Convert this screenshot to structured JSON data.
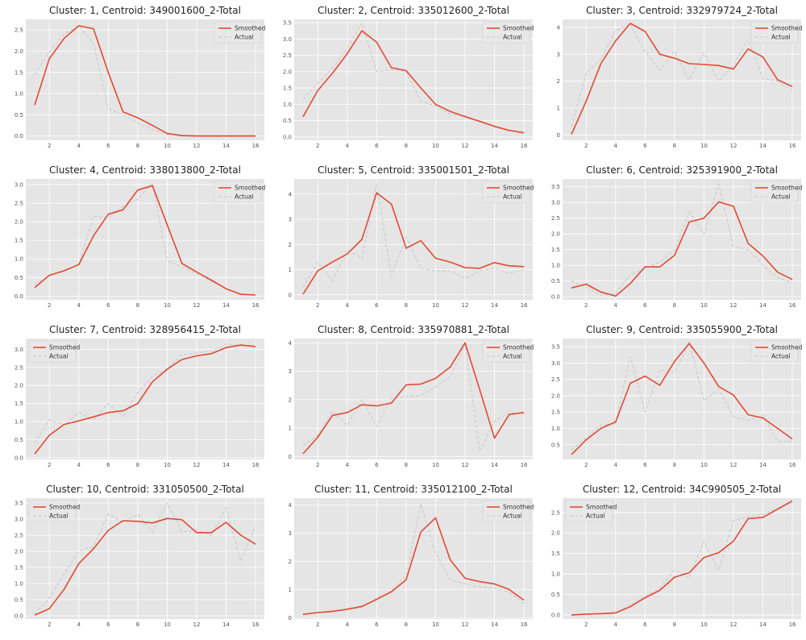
{
  "colors": {
    "smoothed": "#e24a33",
    "actual": "#c8c8c8",
    "plot_bg": "#e5e5e5",
    "grid": "#ffffff"
  },
  "chart_data": [
    {
      "type": "line",
      "title": "Cluster: 1,  Centroid: 349001600_2-Total",
      "x": [
        1,
        2,
        3,
        4,
        5,
        6,
        7,
        8,
        9,
        10,
        11,
        12,
        13,
        14,
        15,
        16
      ],
      "xticks": [
        2,
        4,
        6,
        8,
        10,
        12,
        14,
        16
      ],
      "ylim": [
        -0.1,
        2.75
      ],
      "yticks": [
        "0.0",
        "0.5",
        "1.0",
        "1.5",
        "2.0",
        "2.5"
      ],
      "legend_position": "upper right",
      "series": [
        {
          "name": "Smoothed",
          "values": [
            0.73,
            1.82,
            2.3,
            2.6,
            2.53,
            1.5,
            0.57,
            0.43,
            0.25,
            0.06,
            0.01,
            0.0,
            0.0,
            0.0,
            0.0,
            0.0
          ]
        },
        {
          "name": "Actual",
          "values": [
            1.45,
            1.98,
            2.4,
            2.6,
            2.18,
            0.65,
            0.5,
            0.3,
            0.15,
            0.04,
            0.0,
            0.0,
            0.0,
            0.0,
            0.0,
            0.0
          ]
        }
      ]
    },
    {
      "type": "line",
      "title": "Cluster: 2,  Centroid: 335012600_2-Total",
      "x": [
        1,
        2,
        3,
        4,
        5,
        6,
        7,
        8,
        9,
        10,
        11,
        12,
        13,
        14,
        15,
        16
      ],
      "xticks": [
        2,
        4,
        6,
        8,
        10,
        12,
        14,
        16
      ],
      "ylim": [
        -0.1,
        3.6
      ],
      "yticks": [
        "0.0",
        "0.5",
        "1.0",
        "1.5",
        "2.0",
        "2.5",
        "3.0",
        "3.5"
      ],
      "legend_position": "upper right",
      "series": [
        {
          "name": "Smoothed",
          "values": [
            0.62,
            1.42,
            1.95,
            2.55,
            3.25,
            2.9,
            2.12,
            2.03,
            1.5,
            1.0,
            0.78,
            0.62,
            0.48,
            0.33,
            0.2,
            0.13
          ]
        },
        {
          "name": "Actual",
          "values": [
            1.15,
            1.65,
            2.1,
            2.7,
            3.5,
            2.0,
            2.05,
            2.0,
            1.1,
            0.95,
            0.7,
            0.65,
            0.45,
            0.3,
            0.2,
            0.1
          ]
        }
      ]
    },
    {
      "type": "line",
      "title": "Cluster: 3,  Centroid: 332979724_2-Total",
      "x": [
        1,
        2,
        3,
        4,
        5,
        6,
        7,
        8,
        9,
        10,
        11,
        12,
        13,
        14,
        15,
        16
      ],
      "xticks": [
        2,
        4,
        6,
        8,
        10,
        12,
        14,
        16
      ],
      "ylim": [
        -0.2,
        4.3
      ],
      "yticks": [
        "0",
        "1",
        "2",
        "3",
        "4"
      ],
      "legend_position": "upper right",
      "series": [
        {
          "name": "Smoothed",
          "values": [
            0.02,
            1.25,
            2.65,
            3.5,
            4.15,
            3.85,
            3.0,
            2.85,
            2.65,
            2.62,
            2.58,
            2.45,
            3.2,
            2.9,
            2.05,
            1.8
          ]
        },
        {
          "name": "Actual",
          "values": [
            0.3,
            2.3,
            2.8,
            3.9,
            4.1,
            3.1,
            2.4,
            3.1,
            2.05,
            3.05,
            2.0,
            2.6,
            3.55,
            2.1,
            2.0,
            1.65
          ]
        }
      ]
    },
    {
      "type": "line",
      "title": "Cluster: 4,  Centroid: 338013800_2-Total",
      "x": [
        1,
        2,
        3,
        4,
        5,
        6,
        7,
        8,
        9,
        10,
        11,
        12,
        13,
        14,
        15,
        16
      ],
      "xticks": [
        2,
        4,
        6,
        8,
        10,
        12,
        14,
        16
      ],
      "ylim": [
        -0.1,
        3.15
      ],
      "yticks": [
        "0.0",
        "0.5",
        "1.0",
        "1.5",
        "2.0",
        "2.5",
        "3.0"
      ],
      "legend_position": "upper right",
      "series": [
        {
          "name": "Smoothed",
          "values": [
            0.23,
            0.56,
            0.68,
            0.85,
            1.62,
            2.2,
            2.32,
            2.85,
            2.97,
            1.92,
            0.88,
            0.65,
            0.43,
            0.2,
            0.05,
            0.03
          ]
        },
        {
          "name": "Actual",
          "values": [
            0.3,
            0.55,
            0.7,
            0.85,
            2.15,
            2.1,
            2.4,
            2.6,
            3.05,
            0.95,
            0.8,
            0.6,
            0.4,
            0.2,
            0.05,
            0.02
          ]
        }
      ]
    },
    {
      "type": "line",
      "title": "Cluster: 5,  Centroid: 335001501_2-Total",
      "x": [
        1,
        2,
        3,
        4,
        5,
        6,
        7,
        8,
        9,
        10,
        11,
        12,
        13,
        14,
        15,
        16
      ],
      "xticks": [
        2,
        4,
        6,
        8,
        10,
        12,
        14,
        16
      ],
      "ylim": [
        -0.2,
        4.6
      ],
      "yticks": [
        "0",
        "1",
        "2",
        "3",
        "4"
      ],
      "legend_position": "upper right",
      "series": [
        {
          "name": "Smoothed",
          "values": [
            0.02,
            0.95,
            1.3,
            1.62,
            2.2,
            4.05,
            3.6,
            1.85,
            2.15,
            1.45,
            1.3,
            1.08,
            1.05,
            1.28,
            1.15,
            1.12
          ]
        },
        {
          "name": "Actual",
          "values": [
            0.3,
            1.3,
            0.55,
            1.8,
            1.45,
            4.4,
            0.75,
            2.3,
            1.05,
            0.95,
            0.95,
            0.65,
            0.95,
            1.05,
            0.85,
            1.0
          ]
        }
      ]
    },
    {
      "type": "line",
      "title": "Cluster: 6,  Centroid: 325391900_2-Total",
      "x": [
        1,
        2,
        3,
        4,
        5,
        6,
        7,
        8,
        9,
        10,
        11,
        12,
        13,
        14,
        15,
        16
      ],
      "xticks": [
        2,
        4,
        6,
        8,
        10,
        12,
        14,
        16
      ],
      "ylim": [
        -0.1,
        3.75
      ],
      "yticks": [
        "0.0",
        "0.5",
        "1.0",
        "1.5",
        "2.0",
        "2.5",
        "3.0",
        "3.5"
      ],
      "legend_position": "upper right",
      "series": [
        {
          "name": "Smoothed",
          "values": [
            0.28,
            0.4,
            0.15,
            0.02,
            0.42,
            0.95,
            0.95,
            1.32,
            2.38,
            2.5,
            3.02,
            2.88,
            1.7,
            1.3,
            0.78,
            0.55
          ]
        },
        {
          "name": "Actual",
          "values": [
            0.5,
            0.3,
            0.05,
            0.1,
            0.7,
            0.9,
            1.1,
            1.5,
            2.7,
            2.0,
            3.6,
            1.6,
            1.5,
            1.0,
            0.6,
            0.45
          ]
        }
      ]
    },
    {
      "type": "line",
      "title": "Cluster: 7,  Centroid: 328956415_2-Total",
      "x": [
        1,
        2,
        3,
        4,
        5,
        6,
        7,
        8,
        9,
        10,
        11,
        12,
        13,
        14,
        15,
        16
      ],
      "xticks": [
        2,
        4,
        6,
        8,
        10,
        12,
        14,
        16
      ],
      "ylim": [
        -0.05,
        3.3
      ],
      "yticks": [
        "0.0",
        "0.5",
        "1.0",
        "1.5",
        "2.0",
        "2.5",
        "3.0"
      ],
      "legend_position": "upper left",
      "series": [
        {
          "name": "Smoothed",
          "values": [
            0.1,
            0.62,
            0.92,
            1.02,
            1.13,
            1.25,
            1.3,
            1.5,
            2.1,
            2.45,
            2.72,
            2.82,
            2.88,
            3.05,
            3.12,
            3.08
          ]
        },
        {
          "name": "Actual",
          "values": [
            0.4,
            1.05,
            0.9,
            1.25,
            1.05,
            1.5,
            1.15,
            1.8,
            2.25,
            2.45,
            2.85,
            2.9,
            2.95,
            3.15,
            3.1,
            3.1
          ]
        }
      ]
    },
    {
      "type": "line",
      "title": "Cluster: 8,  Centroid: 335970881_2-Total",
      "x": [
        1,
        2,
        3,
        4,
        5,
        6,
        7,
        8,
        9,
        10,
        11,
        12,
        13,
        14,
        15,
        16
      ],
      "xticks": [
        2,
        4,
        6,
        8,
        10,
        12,
        14,
        16
      ],
      "ylim": [
        -0.1,
        4.15
      ],
      "yticks": [
        "0",
        "1",
        "2",
        "3",
        "4"
      ],
      "legend_position": "upper right",
      "series": [
        {
          "name": "Smoothed",
          "values": [
            0.1,
            0.68,
            1.45,
            1.55,
            1.82,
            1.78,
            1.88,
            2.52,
            2.55,
            2.75,
            3.15,
            4.0,
            2.35,
            0.65,
            1.48,
            1.55
          ]
        },
        {
          "name": "Actual",
          "values": [
            0.4,
            0.75,
            1.6,
            1.1,
            2.0,
            1.05,
            2.05,
            2.1,
            2.15,
            2.45,
            2.8,
            3.95,
            0.2,
            1.25,
            1.55,
            1.5
          ]
        }
      ]
    },
    {
      "type": "line",
      "title": "Cluster: 9,  Centroid: 335055900_2-Total",
      "x": [
        1,
        2,
        3,
        4,
        5,
        6,
        7,
        8,
        9,
        10,
        11,
        12,
        13,
        14,
        15,
        16
      ],
      "xticks": [
        2,
        4,
        6,
        8,
        10,
        12,
        14,
        16
      ],
      "ylim": [
        0.05,
        3.75
      ],
      "yticks": [
        "0.5",
        "1.0",
        "1.5",
        "2.0",
        "2.5",
        "3.0",
        "3.5"
      ],
      "legend_position": "upper right",
      "series": [
        {
          "name": "Smoothed",
          "values": [
            0.2,
            0.65,
            1.0,
            1.2,
            2.38,
            2.6,
            2.32,
            3.05,
            3.6,
            3.0,
            2.28,
            2.02,
            1.42,
            1.32,
            1.0,
            0.68
          ]
        },
        {
          "name": "Actual",
          "values": [
            0.35,
            0.7,
            1.1,
            1.15,
            3.2,
            1.5,
            2.8,
            2.7,
            3.65,
            1.85,
            2.2,
            1.35,
            1.25,
            1.4,
            0.6,
            0.6
          ]
        }
      ]
    },
    {
      "type": "line",
      "title": "Cluster: 10,  Centroid: 331050500_2-Total",
      "x": [
        1,
        2,
        3,
        4,
        5,
        6,
        7,
        8,
        9,
        10,
        11,
        12,
        13,
        14,
        15,
        16
      ],
      "xticks": [
        2,
        4,
        6,
        8,
        10,
        12,
        14,
        16
      ],
      "ylim": [
        -0.1,
        3.65
      ],
      "yticks": [
        "0.0",
        "0.5",
        "1.0",
        "1.5",
        "2.0",
        "2.5",
        "3.0",
        "3.5"
      ],
      "legend_position": "upper left",
      "series": [
        {
          "name": "Smoothed",
          "values": [
            0.02,
            0.22,
            0.82,
            1.62,
            2.08,
            2.65,
            2.95,
            2.93,
            2.88,
            3.02,
            2.98,
            2.58,
            2.58,
            2.9,
            2.5,
            2.22
          ]
        },
        {
          "name": "Actual",
          "values": [
            0.05,
            0.55,
            1.3,
            2.0,
            2.15,
            3.15,
            2.9,
            3.15,
            2.6,
            3.5,
            2.6,
            2.65,
            2.5,
            3.35,
            1.7,
            2.8
          ]
        }
      ]
    },
    {
      "type": "line",
      "title": "Cluster: 11,  Centroid: 335012100_2-Total",
      "x": [
        1,
        2,
        3,
        4,
        5,
        6,
        7,
        8,
        9,
        10,
        11,
        12,
        13,
        14,
        15,
        16
      ],
      "xticks": [
        2,
        4,
        6,
        8,
        10,
        12,
        14,
        16
      ],
      "ylim": [
        -0.05,
        4.25
      ],
      "yticks": [
        "0",
        "1",
        "2",
        "3",
        "4"
      ],
      "legend_position": "upper right",
      "series": [
        {
          "name": "Smoothed",
          "values": [
            0.12,
            0.18,
            0.22,
            0.3,
            0.4,
            0.65,
            0.92,
            1.35,
            3.05,
            3.55,
            2.05,
            1.4,
            1.28,
            1.2,
            1.0,
            0.62
          ]
        },
        {
          "name": "Actual",
          "values": [
            0.1,
            0.2,
            0.25,
            0.3,
            0.35,
            0.7,
            0.95,
            1.5,
            4.05,
            2.3,
            1.35,
            1.2,
            1.1,
            1.05,
            0.9,
            0.5
          ]
        }
      ]
    },
    {
      "type": "line",
      "title": "Cluster: 12,  Centroid: 34C990505_2-Total",
      "x": [
        1,
        2,
        3,
        4,
        5,
        6,
        7,
        8,
        9,
        10,
        11,
        12,
        13,
        14,
        15,
        16
      ],
      "xticks": [
        2,
        4,
        6,
        8,
        10,
        12,
        14,
        16
      ],
      "ylim": [
        -0.1,
        2.85
      ],
      "yticks": [
        "0.0",
        "0.5",
        "1.0",
        "1.5",
        "2.0",
        "2.5"
      ],
      "legend_position": "upper left",
      "series": [
        {
          "name": "Smoothed",
          "values": [
            0.0,
            0.02,
            0.03,
            0.05,
            0.2,
            0.42,
            0.6,
            0.92,
            1.03,
            1.4,
            1.52,
            1.8,
            2.35,
            2.38,
            2.58,
            2.78
          ]
        },
        {
          "name": "Actual",
          "values": [
            0.0,
            0.02,
            0.05,
            0.05,
            0.25,
            0.45,
            0.65,
            1.1,
            0.9,
            1.8,
            1.1,
            2.3,
            2.4,
            2.45,
            2.6,
            2.8
          ]
        }
      ]
    }
  ]
}
